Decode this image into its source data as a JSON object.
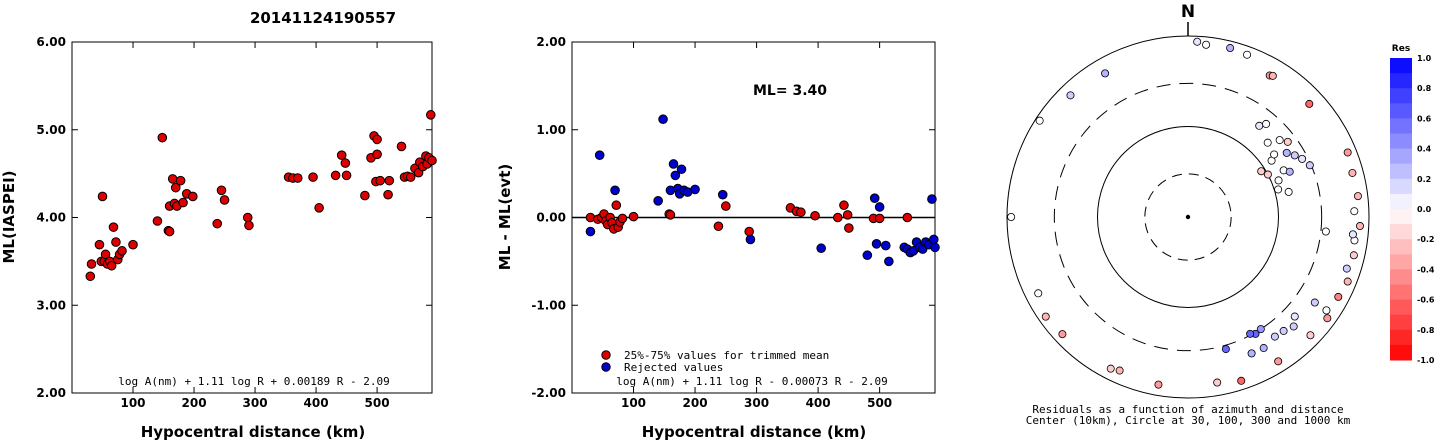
{
  "figure_title": "20141124190557",
  "colors": {
    "red_marker": "#dd0000",
    "blue_marker": "#0000cc",
    "res_positive": "#0000ff",
    "res_negative": "#ff0000"
  },
  "chart_data": [
    {
      "id": "ml_vs_distance",
      "type": "scatter",
      "title": "",
      "xlabel": "Hypocentral distance (km)",
      "ylabel": "ML(IASPEI)",
      "xlim": [
        0,
        590
      ],
      "ylim": [
        2.0,
        6.0
      ],
      "x_ticks": [
        "100",
        "200",
        "300",
        "400",
        "500"
      ],
      "y_ticks": [
        "2.00",
        "3.00",
        "4.00",
        "5.00",
        "6.00"
      ],
      "formula": "log A(nm) + 1.11 log R + 0.00189 R - 2.09",
      "grid": false,
      "series": [
        {
          "color": "red",
          "points": [
            [
              30,
              3.33
            ],
            [
              32,
              3.47
            ],
            [
              45,
              3.69
            ],
            [
              48,
              3.5
            ],
            [
              50,
              4.24
            ],
            [
              53,
              3.5
            ],
            [
              55,
              3.58
            ],
            [
              58,
              3.47
            ],
            [
              62,
              3.5
            ],
            [
              65,
              3.45
            ],
            [
              68,
              3.89
            ],
            [
              72,
              3.72
            ],
            [
              75,
              3.52
            ],
            [
              78,
              3.58
            ],
            [
              82,
              3.62
            ],
            [
              100,
              3.69
            ],
            [
              140,
              3.96
            ],
            [
              148,
              4.91
            ],
            [
              158,
              3.85
            ],
            [
              160,
              3.84
            ],
            [
              160,
              4.13
            ],
            [
              165,
              4.44
            ],
            [
              168,
              4.16
            ],
            [
              170,
              4.34
            ],
            [
              172,
              4.13
            ],
            [
              178,
              4.42
            ],
            [
              182,
              4.17
            ],
            [
              188,
              4.27
            ],
            [
              198,
              4.24
            ],
            [
              238,
              3.93
            ],
            [
              245,
              4.31
            ],
            [
              250,
              4.2
            ],
            [
              288,
              4.0
            ],
            [
              290,
              3.91
            ],
            [
              355,
              4.46
            ],
            [
              362,
              4.45
            ],
            [
              370,
              4.45
            ],
            [
              395,
              4.46
            ],
            [
              405,
              4.11
            ],
            [
              432,
              4.48
            ],
            [
              442,
              4.71
            ],
            [
              448,
              4.62
            ],
            [
              450,
              4.48
            ],
            [
              480,
              4.25
            ],
            [
              490,
              4.68
            ],
            [
              495,
              4.93
            ],
            [
              498,
              4.41
            ],
            [
              500,
              4.89
            ],
            [
              500,
              4.72
            ],
            [
              505,
              4.42
            ],
            [
              518,
              4.26
            ],
            [
              520,
              4.42
            ],
            [
              540,
              4.81
            ],
            [
              545,
              4.46
            ],
            [
              550,
              4.47
            ],
            [
              555,
              4.46
            ],
            [
              562,
              4.56
            ],
            [
              568,
              4.51
            ],
            [
              570,
              4.63
            ],
            [
              575,
              4.58
            ],
            [
              580,
              4.7
            ],
            [
              582,
              4.61
            ],
            [
              585,
              4.68
            ],
            [
              588,
              5.17
            ],
            [
              590,
              4.65
            ]
          ]
        }
      ]
    },
    {
      "id": "residual_vs_distance",
      "type": "scatter",
      "title": "",
      "xlabel": "Hypocentral distance (km)",
      "ylabel": "ML - ML(evt)",
      "xlim": [
        0,
        590
      ],
      "ylim": [
        -2.0,
        2.0
      ],
      "x_ticks": [
        "100",
        "200",
        "300",
        "400",
        "500"
      ],
      "y_ticks": [
        "-2.00",
        "-1.00",
        "0.00",
        "1.00",
        "2.00"
      ],
      "annotation": "ML= 3.40",
      "formula": "log A(nm) + 1.11 log R - 0.00073 R - 2.09",
      "legend_position": "lower-left",
      "legend": [
        "25%-75% values for trimmed mean",
        "Rejected values"
      ],
      "series": [
        {
          "name": "25%-75% values for trimmed mean",
          "color": "red",
          "points": [
            [
              30,
              0.0
            ],
            [
              42,
              -0.02
            ],
            [
              48,
              0.0
            ],
            [
              52,
              0.04
            ],
            [
              55,
              -0.04
            ],
            [
              58,
              -0.08
            ],
            [
              62,
              0.0
            ],
            [
              65,
              -0.06
            ],
            [
              68,
              -0.13
            ],
            [
              72,
              0.14
            ],
            [
              75,
              -0.11
            ],
            [
              78,
              -0.05
            ],
            [
              82,
              -0.01
            ],
            [
              100,
              0.01
            ],
            [
              158,
              0.04
            ],
            [
              160,
              0.03
            ],
            [
              238,
              -0.1
            ],
            [
              250,
              0.13
            ],
            [
              288,
              -0.16
            ],
            [
              355,
              0.11
            ],
            [
              365,
              0.07
            ],
            [
              372,
              0.06
            ],
            [
              395,
              0.02
            ],
            [
              432,
              0.0
            ],
            [
              442,
              0.14
            ],
            [
              448,
              0.03
            ],
            [
              450,
              -0.12
            ],
            [
              490,
              -0.01
            ],
            [
              500,
              -0.01
            ],
            [
              545,
              0.0
            ]
          ]
        },
        {
          "name": "Rejected values",
          "color": "blue",
          "points": [
            [
              30,
              -0.16
            ],
            [
              45,
              0.71
            ],
            [
              70,
              0.31
            ],
            [
              140,
              0.19
            ],
            [
              148,
              1.12
            ],
            [
              160,
              0.31
            ],
            [
              165,
              0.61
            ],
            [
              168,
              0.48
            ],
            [
              172,
              0.33
            ],
            [
              175,
              0.27
            ],
            [
              178,
              0.55
            ],
            [
              182,
              0.31
            ],
            [
              188,
              0.29
            ],
            [
              200,
              0.32
            ],
            [
              245,
              0.26
            ],
            [
              290,
              -0.25
            ],
            [
              405,
              -0.35
            ],
            [
              480,
              -0.43
            ],
            [
              492,
              0.22
            ],
            [
              495,
              -0.3
            ],
            [
              500,
              0.12
            ],
            [
              510,
              -0.32
            ],
            [
              515,
              -0.5
            ],
            [
              540,
              -0.34
            ],
            [
              545,
              -0.36
            ],
            [
              550,
              -0.4
            ],
            [
              555,
              -0.38
            ],
            [
              560,
              -0.28
            ],
            [
              565,
              -0.34
            ],
            [
              570,
              -0.36
            ],
            [
              575,
              -0.28
            ],
            [
              580,
              -0.31
            ],
            [
              585,
              0.21
            ],
            [
              588,
              -0.25
            ],
            [
              590,
              -0.34
            ]
          ]
        }
      ]
    },
    {
      "id": "azimuth_residuals",
      "type": "scatter",
      "title": "N",
      "caption_line1": "Residuals as a function of azimuth and distance",
      "caption_line2": "Center (10km), Circle at 30, 100, 300 and 1000 km",
      "colorbar_title": "Res",
      "colorbar_ticks": [
        "1.0",
        "0.8",
        "0.6",
        "0.4",
        "0.2",
        "0.0",
        "-0.2",
        "-0.4",
        "-0.6",
        "-0.8",
        "-1.0"
      ],
      "rings_km": [
        30,
        100,
        300,
        1000
      ],
      "stations": [
        {
          "az": 3,
          "dist": 870,
          "res": 0.1
        },
        {
          "az": 6,
          "dist": 820,
          "res": 0.0
        },
        {
          "az": 14,
          "dist": 840,
          "res": 0.3
        },
        {
          "az": 20,
          "dist": 810,
          "res": 0.0
        },
        {
          "az": 30,
          "dist": 640,
          "res": -0.4
        },
        {
          "az": 31,
          "dist": 660,
          "res": -0.3
        },
        {
          "az": 47,
          "dist": 680,
          "res": -0.6
        },
        {
          "az": 330,
          "dist": 680,
          "res": 0.3
        },
        {
          "az": 316,
          "dist": 740,
          "res": 0.2
        },
        {
          "az": 303,
          "dist": 900,
          "res": 0.0
        },
        {
          "az": 270,
          "dist": 900,
          "res": 0.0
        },
        {
          "az": 243,
          "dist": 720,
          "res": 0.0
        },
        {
          "az": 235,
          "dist": 830,
          "res": -0.3
        },
        {
          "az": 227,
          "dist": 790,
          "res": -0.4
        },
        {
          "az": 207,
          "dist": 760,
          "res": -0.2
        },
        {
          "az": 204,
          "dist": 720,
          "res": -0.3
        },
        {
          "az": 190,
          "dist": 760,
          "res": -0.4
        },
        {
          "az": 170,
          "dist": 720,
          "res": -0.2
        },
        {
          "az": 162,
          "dist": 800,
          "res": -0.6
        },
        {
          "az": 148,
          "dist": 760,
          "res": -0.4
        },
        {
          "az": 134,
          "dist": 760,
          "res": -0.2
        },
        {
          "az": 126,
          "dist": 800,
          "res": -0.4
        },
        {
          "az": 124,
          "dist": 700,
          "res": 0.0
        },
        {
          "az": 118,
          "dist": 760,
          "res": -0.5
        },
        {
          "az": 112,
          "dist": 800,
          "res": -0.3
        },
        {
          "az": 108,
          "dist": 700,
          "res": 0.2
        },
        {
          "az": 103,
          "dist": 760,
          "res": -0.2
        },
        {
          "az": 98,
          "dist": 720,
          "res": 0.0
        },
        {
          "az": 96,
          "dist": 680,
          "res": 0.1
        },
        {
          "az": 93,
          "dist": 800,
          "res": -0.3
        },
        {
          "az": 88,
          "dist": 690,
          "res": 0.0
        },
        {
          "az": 83,
          "dist": 780,
          "res": -0.3
        },
        {
          "az": 75,
          "dist": 760,
          "res": -0.3
        },
        {
          "az": 68,
          "dist": 800,
          "res": -0.4
        },
        {
          "az": 96,
          "dist": 340,
          "res": 0.0
        },
        {
          "az": 164,
          "dist": 330,
          "res": 0.6
        },
        {
          "az": 155,
          "dist": 460,
          "res": 0.3
        },
        {
          "az": 150,
          "dist": 470,
          "res": 0.3
        },
        {
          "az": 144,
          "dist": 430,
          "res": 0.2
        },
        {
          "az": 140,
          "dist": 440,
          "res": 0.2
        },
        {
          "az": 136,
          "dist": 480,
          "res": 0.2
        },
        {
          "az": 133,
          "dist": 410,
          "res": 0.1
        },
        {
          "az": 124,
          "dist": 490,
          "res": 0.2
        },
        {
          "az": 147,
          "dist": 300,
          "res": 0.4
        },
        {
          "az": 150,
          "dist": 310,
          "res": 0.6
        },
        {
          "az": 152,
          "dist": 290,
          "res": 0.6
        },
        {
          "az": 38,
          "dist": 190,
          "res": 0.1
        },
        {
          "az": 40,
          "dist": 220,
          "res": 0.0
        },
        {
          "az": 47,
          "dist": 160,
          "res": 0.0
        },
        {
          "az": 50,
          "dist": 210,
          "res": 0.0
        },
        {
          "az": 53,
          "dist": 240,
          "res": -0.2
        },
        {
          "az": 57,
          "dist": 200,
          "res": 0.3
        },
        {
          "az": 60,
          "dist": 230,
          "res": 0.2
        },
        {
          "az": 64,
          "dist": 150,
          "res": 0.0
        },
        {
          "az": 66,
          "dist": 170,
          "res": 0.3
        },
        {
          "az": 68,
          "dist": 120,
          "res": 0.0
        },
        {
          "az": 73,
          "dist": 110,
          "res": 0.0
        },
        {
          "az": 76,
          "dist": 140,
          "res": 0.0
        },
        {
          "az": 63,
          "dist": 260,
          "res": 0.1
        },
        {
          "az": 67,
          "dist": 290,
          "res": 0.2
        },
        {
          "az": 62,
          "dist": 100,
          "res": -0.2
        },
        {
          "az": 58,
          "dist": 90,
          "res": -0.2
        },
        {
          "az": 56,
          "dist": 130,
          "res": 0.0
        },
        {
          "az": 54,
          "dist": 150,
          "res": 0.0
        }
      ]
    }
  ]
}
